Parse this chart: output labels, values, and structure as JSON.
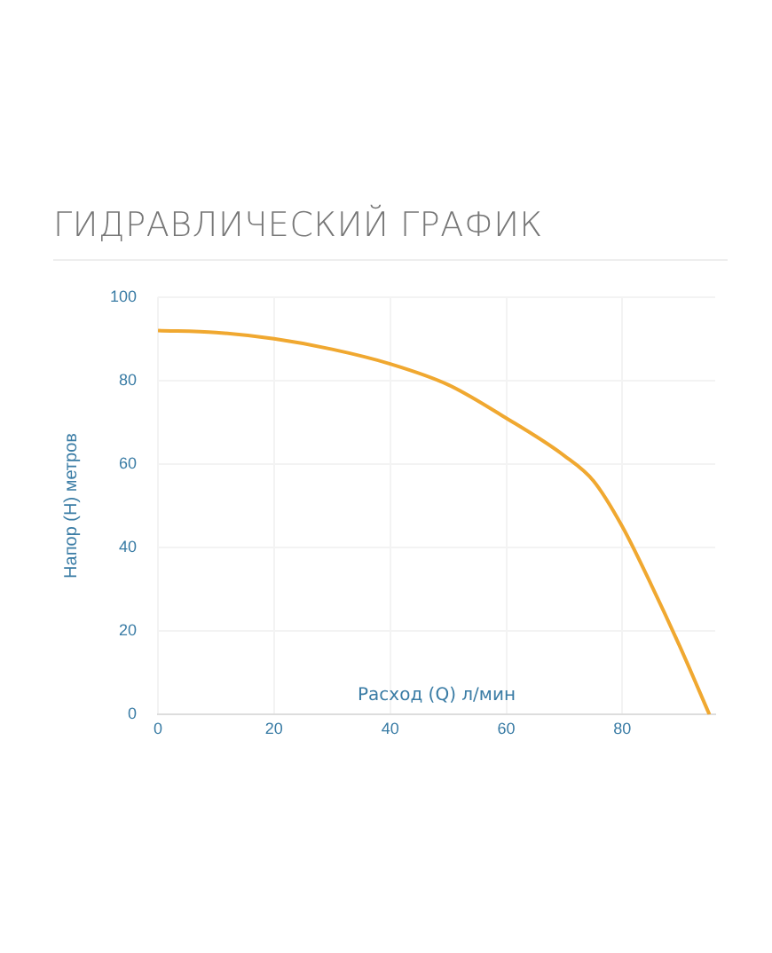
{
  "chart_data": {
    "type": "line",
    "title": "ГИДРАВЛИЧЕСКИЙ ГРАФИК",
    "xlabel": "Расход (Q) л/мин",
    "ylabel": "Напор (H) метров",
    "x": [
      0,
      10,
      20,
      30,
      40,
      50,
      60,
      70,
      75,
      80,
      85,
      90,
      95
    ],
    "series": [
      {
        "color": "#f0a830",
        "values": [
          92,
          91.5,
          90,
          87.5,
          84,
          79,
          71,
          62,
          56,
          45,
          31,
          16,
          0
        ]
      }
    ],
    "xlim": [
      0,
      96
    ],
    "xticks": [
      0,
      20,
      40,
      60,
      80
    ],
    "ylim": [
      0,
      100
    ],
    "yticks": [
      0,
      20,
      40,
      60,
      80,
      100
    ],
    "grid": true,
    "legend": false,
    "marker": "none",
    "line_style": "solid"
  }
}
